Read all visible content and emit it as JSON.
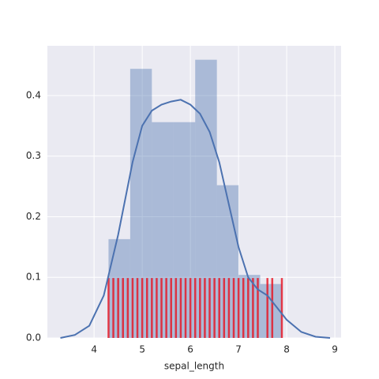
{
  "chart_data": {
    "type": "distplot",
    "x_label": "sepal_length",
    "xlim": [
      3.03,
      9.13
    ],
    "ylim": [
      0,
      0.482
    ],
    "xticks": [
      4,
      5,
      6,
      7,
      8,
      9
    ],
    "yticks": [
      {
        "value": 0,
        "label": "0.0"
      },
      0.1,
      0.2,
      0.3,
      0.4
    ],
    "grid": true,
    "background": "#eaeaf2",
    "grid_color": "#ffffff",
    "hist": {
      "color": "#4c72b0",
      "bins": [
        4.3,
        4.75,
        5.2,
        5.65,
        6.1,
        6.55,
        7.0,
        7.45,
        7.9
      ],
      "values": [
        0.163,
        0.444,
        0.356,
        0.356,
        0.459,
        0.252,
        0.104,
        0.089
      ]
    },
    "kde": {
      "color": "#4c72b0",
      "x": [
        3.3,
        3.6,
        3.9,
        4.2,
        4.5,
        4.8,
        5.0,
        5.2,
        5.4,
        5.6,
        5.8,
        6.0,
        6.2,
        6.4,
        6.6,
        6.8,
        7.0,
        7.2,
        7.4,
        7.6,
        7.8,
        8.0,
        8.3,
        8.6,
        8.9
      ],
      "values": [
        0.0,
        0.005,
        0.02,
        0.07,
        0.17,
        0.29,
        0.35,
        0.375,
        0.385,
        0.39,
        0.393,
        0.385,
        0.37,
        0.34,
        0.29,
        0.22,
        0.15,
        0.1,
        0.08,
        0.07,
        0.05,
        0.03,
        0.01,
        0.002,
        0.0
      ]
    },
    "rug": {
      "color": "#e8101e",
      "values": [
        4.3,
        4.4,
        4.5,
        4.6,
        4.7,
        4.8,
        4.9,
        5.0,
        5.1,
        5.2,
        5.3,
        5.4,
        5.5,
        5.6,
        5.7,
        5.8,
        5.9,
        6.0,
        6.1,
        6.2,
        6.3,
        6.4,
        6.5,
        6.6,
        6.7,
        6.8,
        6.9,
        7.0,
        7.1,
        7.2,
        7.3,
        7.4,
        7.6,
        7.7,
        7.9
      ]
    }
  }
}
